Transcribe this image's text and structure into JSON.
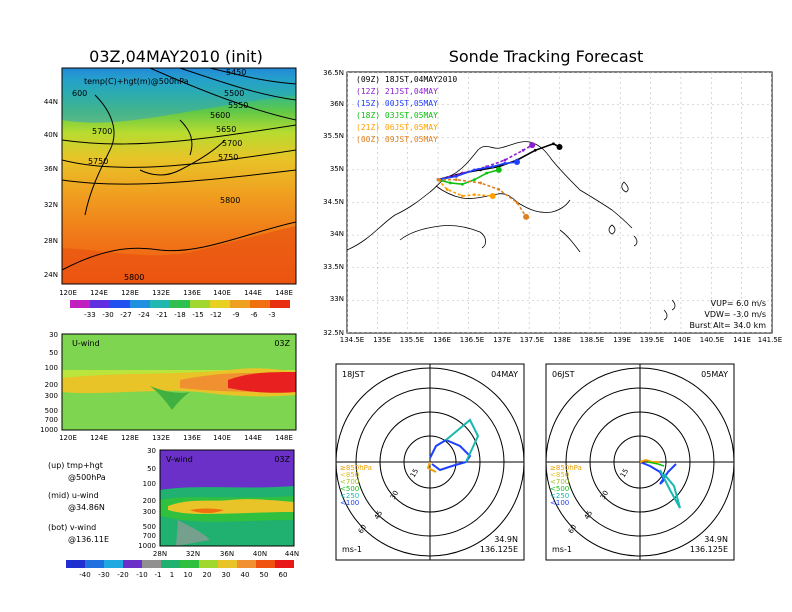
{
  "main_title": "Sonde Tracking Forecast",
  "colors": {
    "t09": "#000000",
    "t12": "#8b1fd0",
    "t15": "#2040ff",
    "t18": "#10c010",
    "t06": "#ffa000",
    "t00": "#e08020",
    "blue": "#1e40ff",
    "teal": "#18b8b0",
    "orange": "#f0a000"
  },
  "upper_panel": {
    "title": "03Z,04MAY2010 (init)",
    "label": "temp(C)+hgt(m)@500hPa",
    "lat_labels": [
      "44N",
      "40N",
      "36N",
      "32N",
      "28N",
      "24N"
    ],
    "lon_labels": [
      "120E",
      "124E",
      "128E",
      "132E",
      "136E",
      "140E",
      "144E",
      "148E"
    ],
    "contour_labels": [
      "5450",
      "5500",
      "5550",
      "5600",
      "5650",
      "5700",
      "5750",
      "5700",
      "5750",
      "5800",
      "5800",
      "600"
    ],
    "colorbar_labels": [
      "-33",
      "-30",
      "-27",
      "-24",
      "-21",
      "-18",
      "-15",
      "-12",
      "-9",
      "-6",
      "-3"
    ]
  },
  "u_panel": {
    "label": "U-wind",
    "time": "03Z",
    "levels": [
      "30",
      "50",
      "100",
      "200",
      "300",
      "500",
      "700",
      "1000"
    ],
    "lon_labels": [
      "120E",
      "124E",
      "128E",
      "132E",
      "136E",
      "140E",
      "144E",
      "148E"
    ]
  },
  "v_panel": {
    "label": "V-wind",
    "time": "03Z",
    "levels": [
      "30",
      "50",
      "100",
      "200",
      "300",
      "500",
      "700",
      "1000"
    ],
    "lat_labels": [
      "28N",
      "32N",
      "36N",
      "40N",
      "44N"
    ],
    "colorbar_labels": [
      "-40",
      "-30",
      "-20",
      "-10",
      "-1",
      "1",
      "10",
      "20",
      "30",
      "40",
      "50",
      "60"
    ]
  },
  "notes": {
    "up": "(up) tmp+hgt",
    "up2": "@500hPa",
    "mid": "(mid) u-wind",
    "mid2": "@34.86N",
    "bot": "(bot) v-wind",
    "bot2": "@136.11E"
  },
  "track_panel": {
    "legend": [
      {
        "tag": "(09Z)",
        "text": "18JST,04MAY2010",
        "color": "#000000"
      },
      {
        "tag": "(12Z)",
        "text": "21JST,04MAY",
        "color": "#8b1fd0"
      },
      {
        "tag": "(15Z)",
        "text": "00JST,05MAY",
        "color": "#2040ff"
      },
      {
        "tag": "(18Z)",
        "text": "03JST,05MAY",
        "color": "#10c010"
      },
      {
        "tag": "(21Z)",
        "text": "06JST,05MAY",
        "color": "#ffa000"
      },
      {
        "tag": "(00Z)",
        "text": "09JST,05MAY",
        "color": "#e08020"
      }
    ],
    "lat_labels": [
      "36.5N",
      "36N",
      "35.5N",
      "35N",
      "34.5N",
      "34N",
      "33.5N",
      "33N",
      "32.5N"
    ],
    "lon_labels": [
      "134.5E",
      "135E",
      "135.5E",
      "136E",
      "136.5E",
      "137E",
      "137.5E",
      "138E",
      "138.5E",
      "139E",
      "139.5E",
      "140E",
      "140.5E",
      "141E",
      "141.5E"
    ],
    "vup": "VUP= 6.0 m/s",
    "vdw": "VDW= -3.0 m/s",
    "burst": "Burst Alt= 34.0 km"
  },
  "hodo_left": {
    "time": "18JST",
    "date": "04MAY",
    "ring_labels": [
      "15",
      "30",
      "45",
      "60"
    ],
    "levels": [
      "≥850hPa",
      "<850",
      "<700",
      "<500",
      "<250",
      "<100"
    ],
    "unit": "ms-1",
    "lat": "34.9N",
    "lon": "136.125E"
  },
  "hodo_right": {
    "time": "06JST",
    "date": "05MAY",
    "ring_labels": [
      "15",
      "30",
      "45",
      "60"
    ],
    "levels": [
      "≥850hPa",
      "<850",
      "<700",
      "<500",
      "<250",
      "<100"
    ],
    "unit": "ms-1",
    "lat": "34.9N",
    "lon": "136.125E"
  },
  "chart_data": [
    {
      "type": "heatmap",
      "title": "03Z,04MAY2010 (init)",
      "subtitle": "temp(C)+hgt(m)@500hPa",
      "x": [
        "120E",
        "124E",
        "128E",
        "132E",
        "136E",
        "140E",
        "144E",
        "148E"
      ],
      "y": [
        "24N",
        "28N",
        "32N",
        "36N",
        "40N",
        "44N"
      ],
      "contours": [
        5450,
        5500,
        5550,
        5600,
        5650,
        5700,
        5750,
        5800
      ],
      "colorbar": [
        -33,
        -30,
        -27,
        -24,
        -21,
        -18,
        -15,
        -12,
        -9,
        -6,
        -3
      ]
    },
    {
      "type": "heatmap",
      "title": "U-wind",
      "x": [
        "120E",
        "124E",
        "128E",
        "132E",
        "136E",
        "140E",
        "144E",
        "148E"
      ],
      "y": [
        30,
        50,
        100,
        200,
        300,
        500,
        700,
        1000
      ]
    },
    {
      "type": "heatmap",
      "title": "V-wind",
      "x": [
        "28N",
        "32N",
        "36N",
        "40N",
        "44N"
      ],
      "y": [
        30,
        50,
        100,
        200,
        300,
        500,
        700,
        1000
      ],
      "colorbar": [
        -40,
        -30,
        -20,
        -10,
        -1,
        1,
        10,
        20,
        30,
        40,
        50,
        60
      ]
    },
    {
      "type": "line",
      "title": "Sonde Tracking Forecast",
      "xlim": [
        134.5,
        141.5
      ],
      "ylim": [
        32.5,
        36.5
      ],
      "series": [
        {
          "name": "18JST,04MAY2010",
          "x": [
            136.0,
            136.4,
            136.7,
            137.0,
            137.3,
            137.6,
            137.9,
            138.0
          ],
          "y": [
            34.85,
            34.95,
            35.0,
            35.05,
            35.15,
            35.3,
            35.4,
            35.35
          ]
        },
        {
          "name": "21JST,04MAY",
          "x": [
            136.0,
            136.4,
            136.8,
            137.1,
            137.4,
            137.55
          ],
          "y": [
            34.85,
            34.95,
            35.05,
            35.15,
            35.3,
            35.38
          ]
        },
        {
          "name": "00JST,05MAY",
          "x": [
            136.0,
            136.3,
            136.6,
            136.9,
            137.1,
            137.3
          ],
          "y": [
            34.85,
            34.9,
            35.0,
            35.05,
            35.1,
            35.12
          ]
        },
        {
          "name": "03JST,05MAY",
          "x": [
            136.0,
            136.2,
            136.4,
            136.6,
            136.8,
            137.0
          ],
          "y": [
            34.85,
            34.8,
            34.78,
            34.85,
            34.95,
            35.0
          ]
        },
        {
          "name": "06JST,05MAY",
          "x": [
            136.0,
            136.15,
            136.4,
            136.6,
            136.9
          ],
          "y": [
            34.85,
            34.7,
            34.6,
            34.62,
            34.6
          ]
        },
        {
          "name": "09JST,05MAY",
          "x": [
            136.0,
            136.3,
            136.7,
            137.0,
            137.3,
            137.45
          ],
          "y": [
            34.85,
            34.85,
            34.8,
            34.7,
            34.5,
            34.28
          ]
        }
      ]
    }
  ]
}
